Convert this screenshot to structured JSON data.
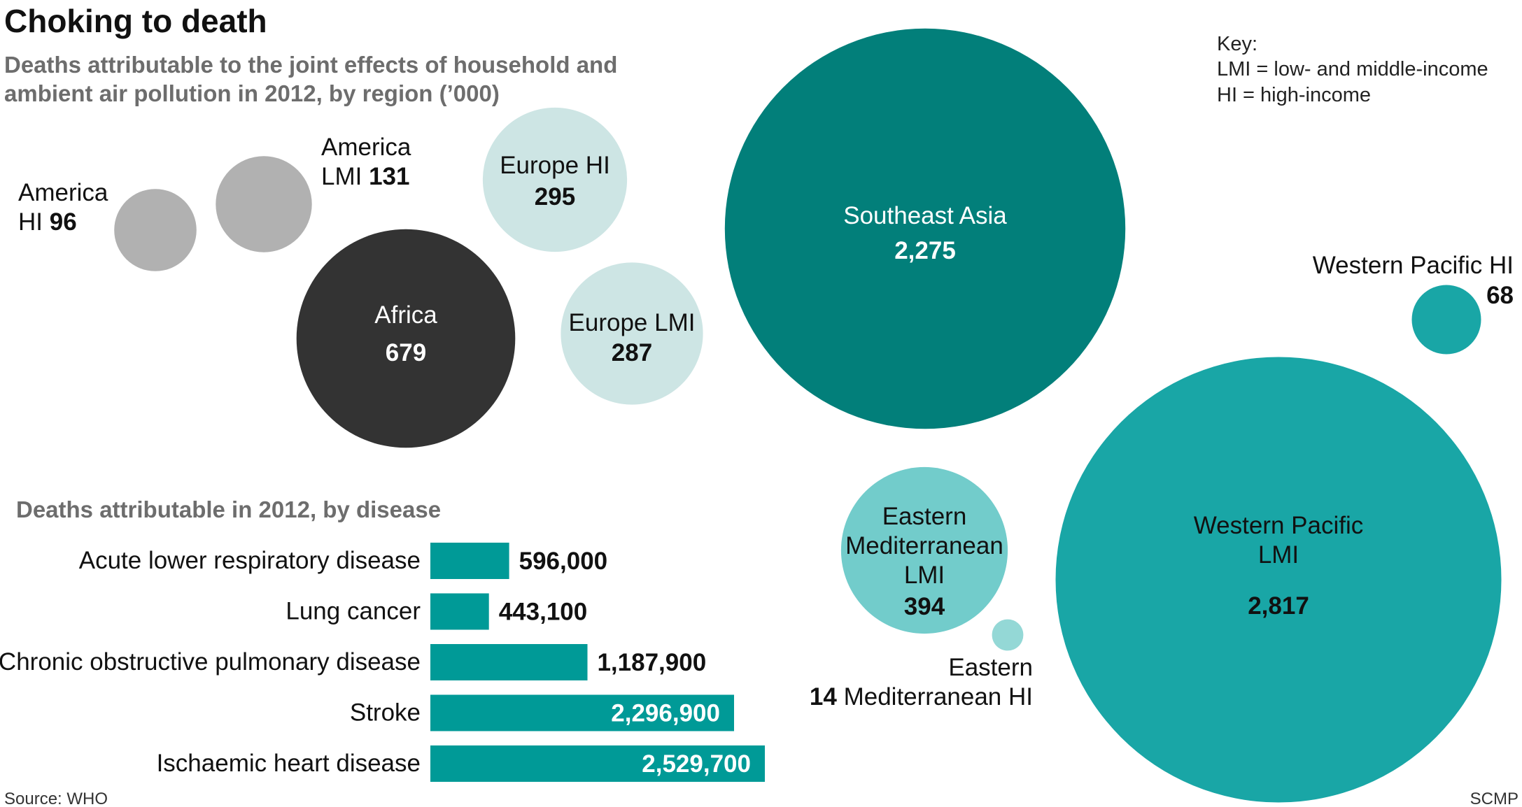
{
  "title": "Choking to death",
  "subtitle_line1": "Deaths attributable to the joint effects of household and",
  "subtitle_line2": "ambient air pollution in 2012, by region (’000)",
  "key": {
    "heading": "Key:",
    "line1": "LMI = low- and middle-income",
    "line2": "HI = high-income"
  },
  "source": "Source: WHO",
  "credit": "SCMP",
  "colors": {
    "america": "#b1b1b1",
    "africa": "#333333",
    "europe": "#cde5e4",
    "southeast_asia": "#027f7a",
    "western_pacific": "#19a6a6",
    "eastern_med_lmi": "#72cccb",
    "eastern_med_hi": "#94d8d6",
    "disease_bar": "#009a97",
    "subtitle": "#6d6d6d"
  },
  "chart_data": [
    {
      "type": "bubble",
      "title": "Deaths attributable to the joint effects of household and ambient air pollution in 2012, by region (’000)",
      "regions": [
        {
          "id": "america_hi",
          "name_lines": [
            "America",
            "HI"
          ],
          "value": 96,
          "value_label": "96",
          "color": "america"
        },
        {
          "id": "america_lmi",
          "name_lines": [
            "America",
            "LMI"
          ],
          "value": 131,
          "value_label": "131",
          "color": "america"
        },
        {
          "id": "africa",
          "name_lines": [
            "Africa"
          ],
          "value": 679,
          "value_label": "679",
          "color": "africa"
        },
        {
          "id": "europe_hi",
          "name_lines": [
            "Europe HI"
          ],
          "value": 295,
          "value_label": "295",
          "color": "europe"
        },
        {
          "id": "europe_lmi",
          "name_lines": [
            "Europe LMI"
          ],
          "value": 287,
          "value_label": "287",
          "color": "europe"
        },
        {
          "id": "southeast_asia",
          "name_lines": [
            "Southeast Asia"
          ],
          "value": 2275,
          "value_label": "2,275",
          "color": "southeast_asia"
        },
        {
          "id": "western_pacific_hi",
          "name_lines": [
            "Western Pacific HI"
          ],
          "value": 68,
          "value_label": "68",
          "color": "western_pacific"
        },
        {
          "id": "western_pacific_lmi",
          "name_lines": [
            "Western Pacific",
            "LMI"
          ],
          "value": 2817,
          "value_label": "2,817",
          "color": "western_pacific"
        },
        {
          "id": "eastern_med_lmi",
          "name_lines": [
            "Eastern",
            "Mediterranean",
            "LMI"
          ],
          "value": 394,
          "value_label": "394",
          "color": "eastern_med_lmi"
        },
        {
          "id": "eastern_med_hi",
          "name_lines": [
            "Eastern",
            "Mediterranean HI"
          ],
          "value": 14,
          "value_label": "14",
          "color": "eastern_med_hi"
        }
      ]
    },
    {
      "type": "bar",
      "orientation": "horizontal",
      "title": "Deaths attributable in 2012, by disease",
      "categories": [
        "Acute lower respiratory disease",
        "Lung cancer",
        "Chronic obstructive pulmonary disease",
        "Stroke",
        "Ischaemic heart disease"
      ],
      "values": [
        596000,
        443100,
        1187900,
        2296900,
        2529700
      ],
      "value_labels": [
        "596,000",
        "443,100",
        "1,187,900",
        "2,296,900",
        "2,529,700"
      ]
    }
  ]
}
